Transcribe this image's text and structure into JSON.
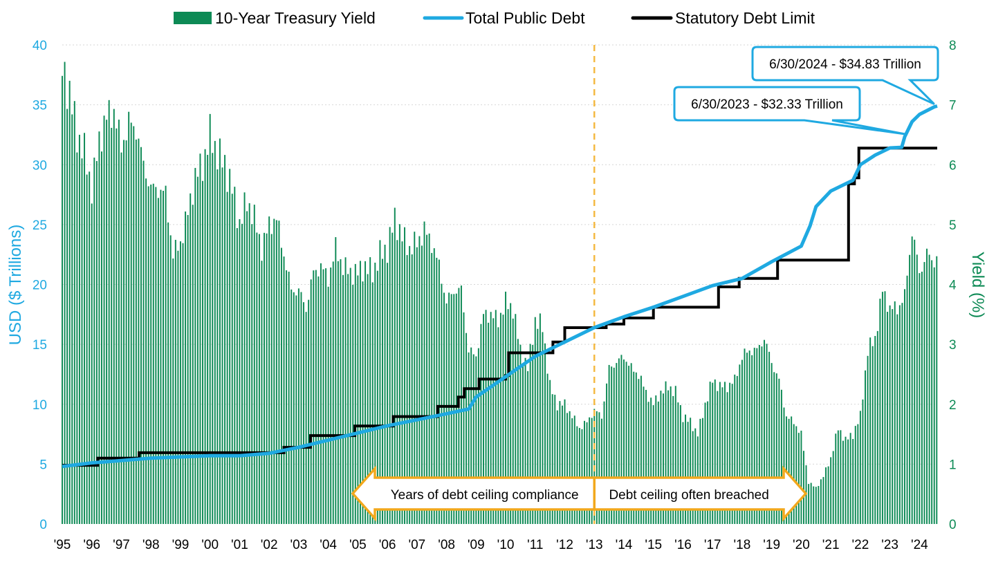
{
  "chart_data": {
    "type": "bar",
    "legend": {
      "position": "top-center",
      "items": [
        {
          "label": "10-Year Treasury Yield",
          "kind": "bar"
        },
        {
          "label": "Total Public Debt",
          "kind": "line"
        },
        {
          "label": "Statutory Debt Limit",
          "kind": "line"
        }
      ]
    },
    "colors": {
      "yield": "#0d8a55",
      "debt": "#1fa9e1",
      "limit": "#000000",
      "divider": "#f4b942",
      "arrow": "#f2a81d",
      "left_axis": "#1fa9e1",
      "right_axis": "#0d8a55",
      "grid": "#d6d6d6"
    },
    "ylabel_left": "USD ($ Trillions)",
    "ylabel_right": "Yield (%)",
    "ylim_left": [
      0,
      40
    ],
    "ylim_right": [
      0,
      8
    ],
    "yticks_left": [
      "0",
      "5",
      "10",
      "15",
      "20",
      "25",
      "30",
      "35",
      "40"
    ],
    "yticks_right": [
      "0",
      "1",
      "2",
      "3",
      "4",
      "5",
      "6",
      "7",
      "8"
    ],
    "xticks": [
      "'95",
      "'96",
      "'97",
      "'98",
      "'99",
      "'00",
      "'01",
      "'02",
      "'03",
      "'04",
      "'05",
      "'06",
      "'07",
      "'08",
      "'09",
      "'10",
      "'11",
      "'12",
      "'13",
      "'14",
      "'15",
      "'16",
      "'17",
      "'18",
      "'19",
      "'20",
      "'21",
      "'22",
      "'23",
      "'24"
    ],
    "xlim": [
      1995.0,
      2024.6
    ],
    "grid": "horizontal dotted",
    "series": [
      {
        "name": "10-Year Treasury Yield",
        "type": "bar",
        "axis": "right",
        "points": [
          [
            1995.0,
            7.6
          ],
          [
            1995.25,
            7.2
          ],
          [
            1995.5,
            6.5
          ],
          [
            1995.75,
            6.2
          ],
          [
            1996.0,
            5.6
          ],
          [
            1996.25,
            6.4
          ],
          [
            1996.5,
            6.8
          ],
          [
            1996.75,
            6.9
          ],
          [
            1997.0,
            6.3
          ],
          [
            1997.25,
            6.7
          ],
          [
            1997.5,
            6.6
          ],
          [
            1997.75,
            6.0
          ],
          [
            1998.0,
            5.6
          ],
          [
            1998.25,
            5.6
          ],
          [
            1998.5,
            5.5
          ],
          [
            1998.75,
            4.5
          ],
          [
            1999.0,
            4.7
          ],
          [
            1999.25,
            5.2
          ],
          [
            1999.5,
            5.8
          ],
          [
            1999.75,
            6.0
          ],
          [
            2000.0,
            6.5
          ],
          [
            2000.25,
            6.2
          ],
          [
            2000.5,
            6.0
          ],
          [
            2000.75,
            5.6
          ],
          [
            2001.0,
            5.0
          ],
          [
            2001.25,
            5.4
          ],
          [
            2001.5,
            5.1
          ],
          [
            2001.75,
            4.6
          ],
          [
            2002.0,
            5.0
          ],
          [
            2002.25,
            5.1
          ],
          [
            2002.5,
            4.5
          ],
          [
            2002.75,
            3.9
          ],
          [
            2003.0,
            3.9
          ],
          [
            2003.25,
            3.6
          ],
          [
            2003.5,
            4.2
          ],
          [
            2003.75,
            4.3
          ],
          [
            2004.0,
            4.1
          ],
          [
            2004.25,
            4.6
          ],
          [
            2004.5,
            4.3
          ],
          [
            2004.75,
            4.2
          ],
          [
            2005.0,
            4.2
          ],
          [
            2005.25,
            4.3
          ],
          [
            2005.5,
            4.2
          ],
          [
            2005.75,
            4.5
          ],
          [
            2006.0,
            4.6
          ],
          [
            2006.25,
            5.1
          ],
          [
            2006.5,
            4.8
          ],
          [
            2006.75,
            4.6
          ],
          [
            2007.0,
            4.7
          ],
          [
            2007.25,
            4.9
          ],
          [
            2007.5,
            4.7
          ],
          [
            2007.75,
            4.3
          ],
          [
            2008.0,
            3.7
          ],
          [
            2008.25,
            3.9
          ],
          [
            2008.5,
            3.9
          ],
          [
            2008.75,
            2.9
          ],
          [
            2009.0,
            2.8
          ],
          [
            2009.25,
            3.5
          ],
          [
            2009.5,
            3.5
          ],
          [
            2009.75,
            3.4
          ],
          [
            2010.0,
            3.7
          ],
          [
            2010.25,
            3.6
          ],
          [
            2010.5,
            2.9
          ],
          [
            2010.75,
            2.6
          ],
          [
            2011.0,
            3.4
          ],
          [
            2011.25,
            3.3
          ],
          [
            2011.5,
            2.3
          ],
          [
            2011.75,
            2.0
          ],
          [
            2012.0,
            2.0
          ],
          [
            2012.25,
            1.8
          ],
          [
            2012.5,
            1.6
          ],
          [
            2012.75,
            1.7
          ],
          [
            2013.0,
            1.9
          ],
          [
            2013.25,
            1.8
          ],
          [
            2013.5,
            2.6
          ],
          [
            2013.75,
            2.7
          ],
          [
            2014.0,
            2.8
          ],
          [
            2014.25,
            2.6
          ],
          [
            2014.5,
            2.5
          ],
          [
            2014.75,
            2.2
          ],
          [
            2015.0,
            2.0
          ],
          [
            2015.25,
            2.2
          ],
          [
            2015.5,
            2.3
          ],
          [
            2015.75,
            2.2
          ],
          [
            2016.0,
            1.8
          ],
          [
            2016.25,
            1.7
          ],
          [
            2016.5,
            1.5
          ],
          [
            2016.75,
            2.0
          ],
          [
            2017.0,
            2.4
          ],
          [
            2017.25,
            2.3
          ],
          [
            2017.5,
            2.3
          ],
          [
            2017.75,
            2.4
          ],
          [
            2018.0,
            2.8
          ],
          [
            2018.25,
            2.9
          ],
          [
            2018.5,
            2.9
          ],
          [
            2018.75,
            3.1
          ],
          [
            2019.0,
            2.7
          ],
          [
            2019.25,
            2.4
          ],
          [
            2019.5,
            1.8
          ],
          [
            2019.75,
            1.7
          ],
          [
            2020.0,
            1.5
          ],
          [
            2020.25,
            0.7
          ],
          [
            2020.5,
            0.6
          ],
          [
            2020.75,
            0.8
          ],
          [
            2021.0,
            1.1
          ],
          [
            2021.25,
            1.6
          ],
          [
            2021.5,
            1.4
          ],
          [
            2021.75,
            1.5
          ],
          [
            2022.0,
            1.8
          ],
          [
            2022.25,
            2.9
          ],
          [
            2022.5,
            3.1
          ],
          [
            2022.75,
            3.9
          ],
          [
            2023.0,
            3.6
          ],
          [
            2023.25,
            3.6
          ],
          [
            2023.5,
            3.8
          ],
          [
            2023.75,
            4.9
          ],
          [
            2024.0,
            4.2
          ],
          [
            2024.25,
            4.5
          ],
          [
            2024.5,
            4.4
          ]
        ]
      },
      {
        "name": "Total Public Debt",
        "type": "line",
        "axis": "left",
        "points": [
          [
            1995.0,
            4.8
          ],
          [
            1996.0,
            5.1
          ],
          [
            1997.0,
            5.3
          ],
          [
            1998.0,
            5.5
          ],
          [
            1999.0,
            5.6
          ],
          [
            2000.0,
            5.7
          ],
          [
            2001.0,
            5.7
          ],
          [
            2002.0,
            5.9
          ],
          [
            2003.0,
            6.4
          ],
          [
            2004.0,
            7.0
          ],
          [
            2005.0,
            7.6
          ],
          [
            2006.0,
            8.2
          ],
          [
            2007.0,
            8.7
          ],
          [
            2008.0,
            9.2
          ],
          [
            2008.75,
            9.6
          ],
          [
            2009.0,
            10.6
          ],
          [
            2010.0,
            12.3
          ],
          [
            2011.0,
            14.0
          ],
          [
            2012.0,
            15.2
          ],
          [
            2013.0,
            16.4
          ],
          [
            2014.0,
            17.3
          ],
          [
            2015.0,
            18.1
          ],
          [
            2016.0,
            19.0
          ],
          [
            2017.0,
            19.9
          ],
          [
            2018.0,
            20.5
          ],
          [
            2019.0,
            21.9
          ],
          [
            2020.0,
            23.2
          ],
          [
            2020.3,
            24.9
          ],
          [
            2020.5,
            26.5
          ],
          [
            2021.0,
            27.8
          ],
          [
            2021.75,
            28.7
          ],
          [
            2022.0,
            30.0
          ],
          [
            2022.5,
            30.8
          ],
          [
            2023.0,
            31.4
          ],
          [
            2023.4,
            31.45
          ],
          [
            2023.5,
            32.33
          ],
          [
            2023.75,
            33.6
          ],
          [
            2024.0,
            34.2
          ],
          [
            2024.5,
            34.83
          ],
          [
            2024.6,
            34.9
          ]
        ]
      },
      {
        "name": "Statutory Debt Limit",
        "type": "line",
        "axis": "left",
        "points": [
          [
            1995.0,
            4.9
          ],
          [
            1996.2,
            4.9
          ],
          [
            1996.2,
            5.5
          ],
          [
            1997.6,
            5.5
          ],
          [
            1997.6,
            5.95
          ],
          [
            2002.5,
            5.95
          ],
          [
            2002.5,
            6.4
          ],
          [
            2003.4,
            6.4
          ],
          [
            2003.4,
            7.38
          ],
          [
            2004.9,
            7.38
          ],
          [
            2004.9,
            8.18
          ],
          [
            2006.2,
            8.18
          ],
          [
            2006.2,
            8.97
          ],
          [
            2007.7,
            8.97
          ],
          [
            2007.7,
            9.82
          ],
          [
            2008.4,
            9.82
          ],
          [
            2008.4,
            10.6
          ],
          [
            2008.6,
            10.6
          ],
          [
            2008.6,
            11.3
          ],
          [
            2009.1,
            11.3
          ],
          [
            2009.1,
            12.1
          ],
          [
            2010.0,
            12.1
          ],
          [
            2010.0,
            12.4
          ],
          [
            2010.1,
            12.4
          ],
          [
            2010.1,
            14.29
          ],
          [
            2011.6,
            14.29
          ],
          [
            2011.6,
            15.19
          ],
          [
            2011.75,
            15.19
          ],
          [
            2011.75,
            15.19
          ],
          [
            2012.0,
            15.19
          ],
          [
            2012.0,
            16.39
          ],
          [
            2013.4,
            16.39
          ],
          [
            2013.4,
            16.7
          ],
          [
            2014.0,
            16.7
          ],
          [
            2014.0,
            17.2
          ],
          [
            2015.0,
            17.2
          ],
          [
            2015.0,
            18.1
          ],
          [
            2017.2,
            18.1
          ],
          [
            2017.2,
            19.8
          ],
          [
            2017.9,
            19.8
          ],
          [
            2017.9,
            20.5
          ],
          [
            2019.2,
            20.5
          ],
          [
            2019.2,
            22.03
          ],
          [
            2021.6,
            22.03
          ],
          [
            2021.6,
            28.4
          ],
          [
            2021.8,
            28.4
          ],
          [
            2021.8,
            28.9
          ],
          [
            2021.95,
            28.9
          ],
          [
            2021.95,
            31.38
          ],
          [
            2024.6,
            31.38
          ]
        ]
      }
    ],
    "annotations": {
      "divider_x": 2013.0,
      "callout_2024": {
        "label": "6/30/2024 - $34.83 Trillion",
        "x": 2024.5,
        "y": 34.83
      },
      "callout_2023": {
        "label": "6/30/2023 - $32.33 Trillion",
        "x": 2023.5,
        "y": 32.33
      },
      "arrow_left_label": "Years of debt ceiling compliance",
      "arrow_right_label": "Debt ceiling often breached"
    }
  }
}
